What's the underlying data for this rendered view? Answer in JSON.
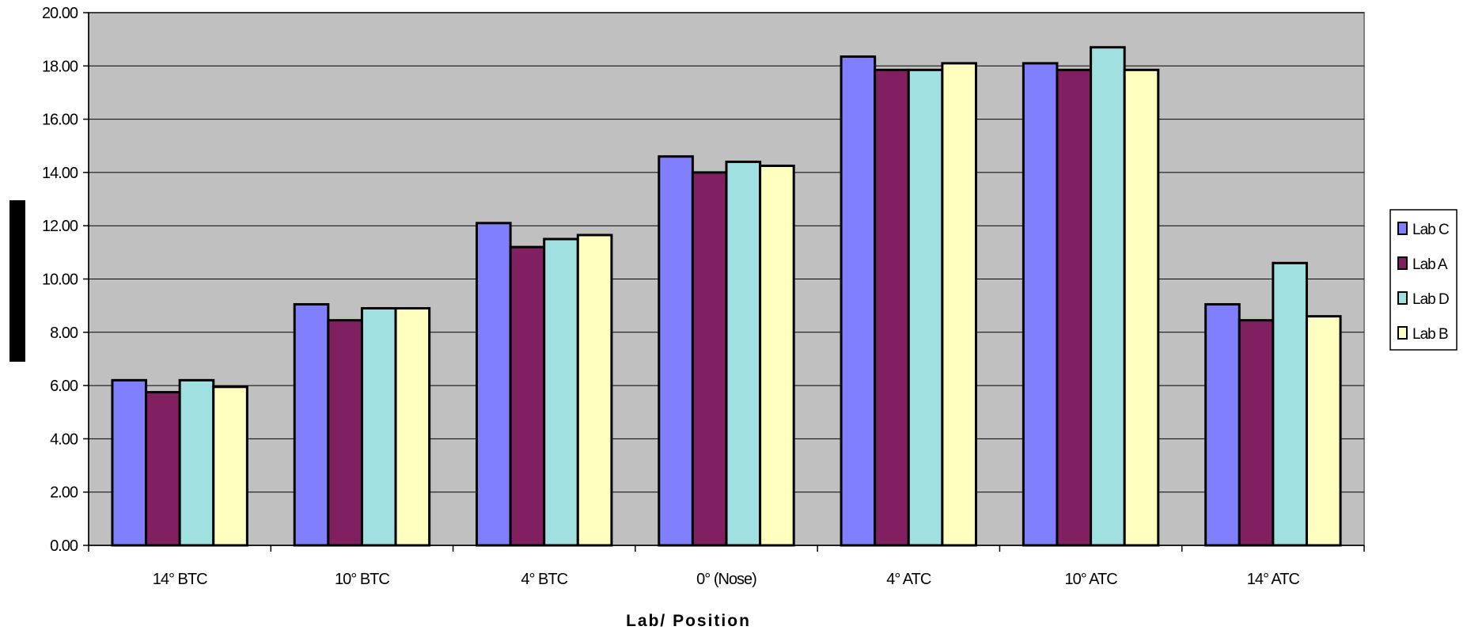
{
  "chart_data": {
    "type": "bar",
    "title": "",
    "xlabel": "Lab/ Position",
    "ylabel": "",
    "ylim": [
      0,
      20
    ],
    "ytick_step": 2,
    "ytick_labels": [
      "0.00",
      "2.00",
      "4.00",
      "6.00",
      "8.00",
      "10.00",
      "12.00",
      "14.00",
      "16.00",
      "18.00",
      "20.00"
    ],
    "grid": true,
    "legend_position": "right",
    "categories": [
      "14° BTC",
      "10° BTC",
      "4° BTC",
      "0° (Nose)",
      "4° ATC",
      "10° ATC",
      "14° ATC"
    ],
    "series": [
      {
        "name": "Lab C",
        "color": "#8080ff",
        "values": [
          6.2,
          9.05,
          12.1,
          14.6,
          18.35,
          18.1,
          9.05
        ]
      },
      {
        "name": "Lab A",
        "color": "#802060",
        "values": [
          5.75,
          8.45,
          11.2,
          14.0,
          17.85,
          17.85,
          8.45
        ]
      },
      {
        "name": "Lab D",
        "color": "#a0e0e0",
        "values": [
          6.2,
          8.9,
          11.5,
          14.4,
          17.85,
          18.7,
          10.6
        ]
      },
      {
        "name": "Lab B",
        "color": "#ffffc0",
        "values": [
          5.95,
          8.9,
          11.65,
          14.25,
          18.1,
          17.85,
          8.6
        ]
      }
    ],
    "plot_background": "#c0c0c0"
  }
}
